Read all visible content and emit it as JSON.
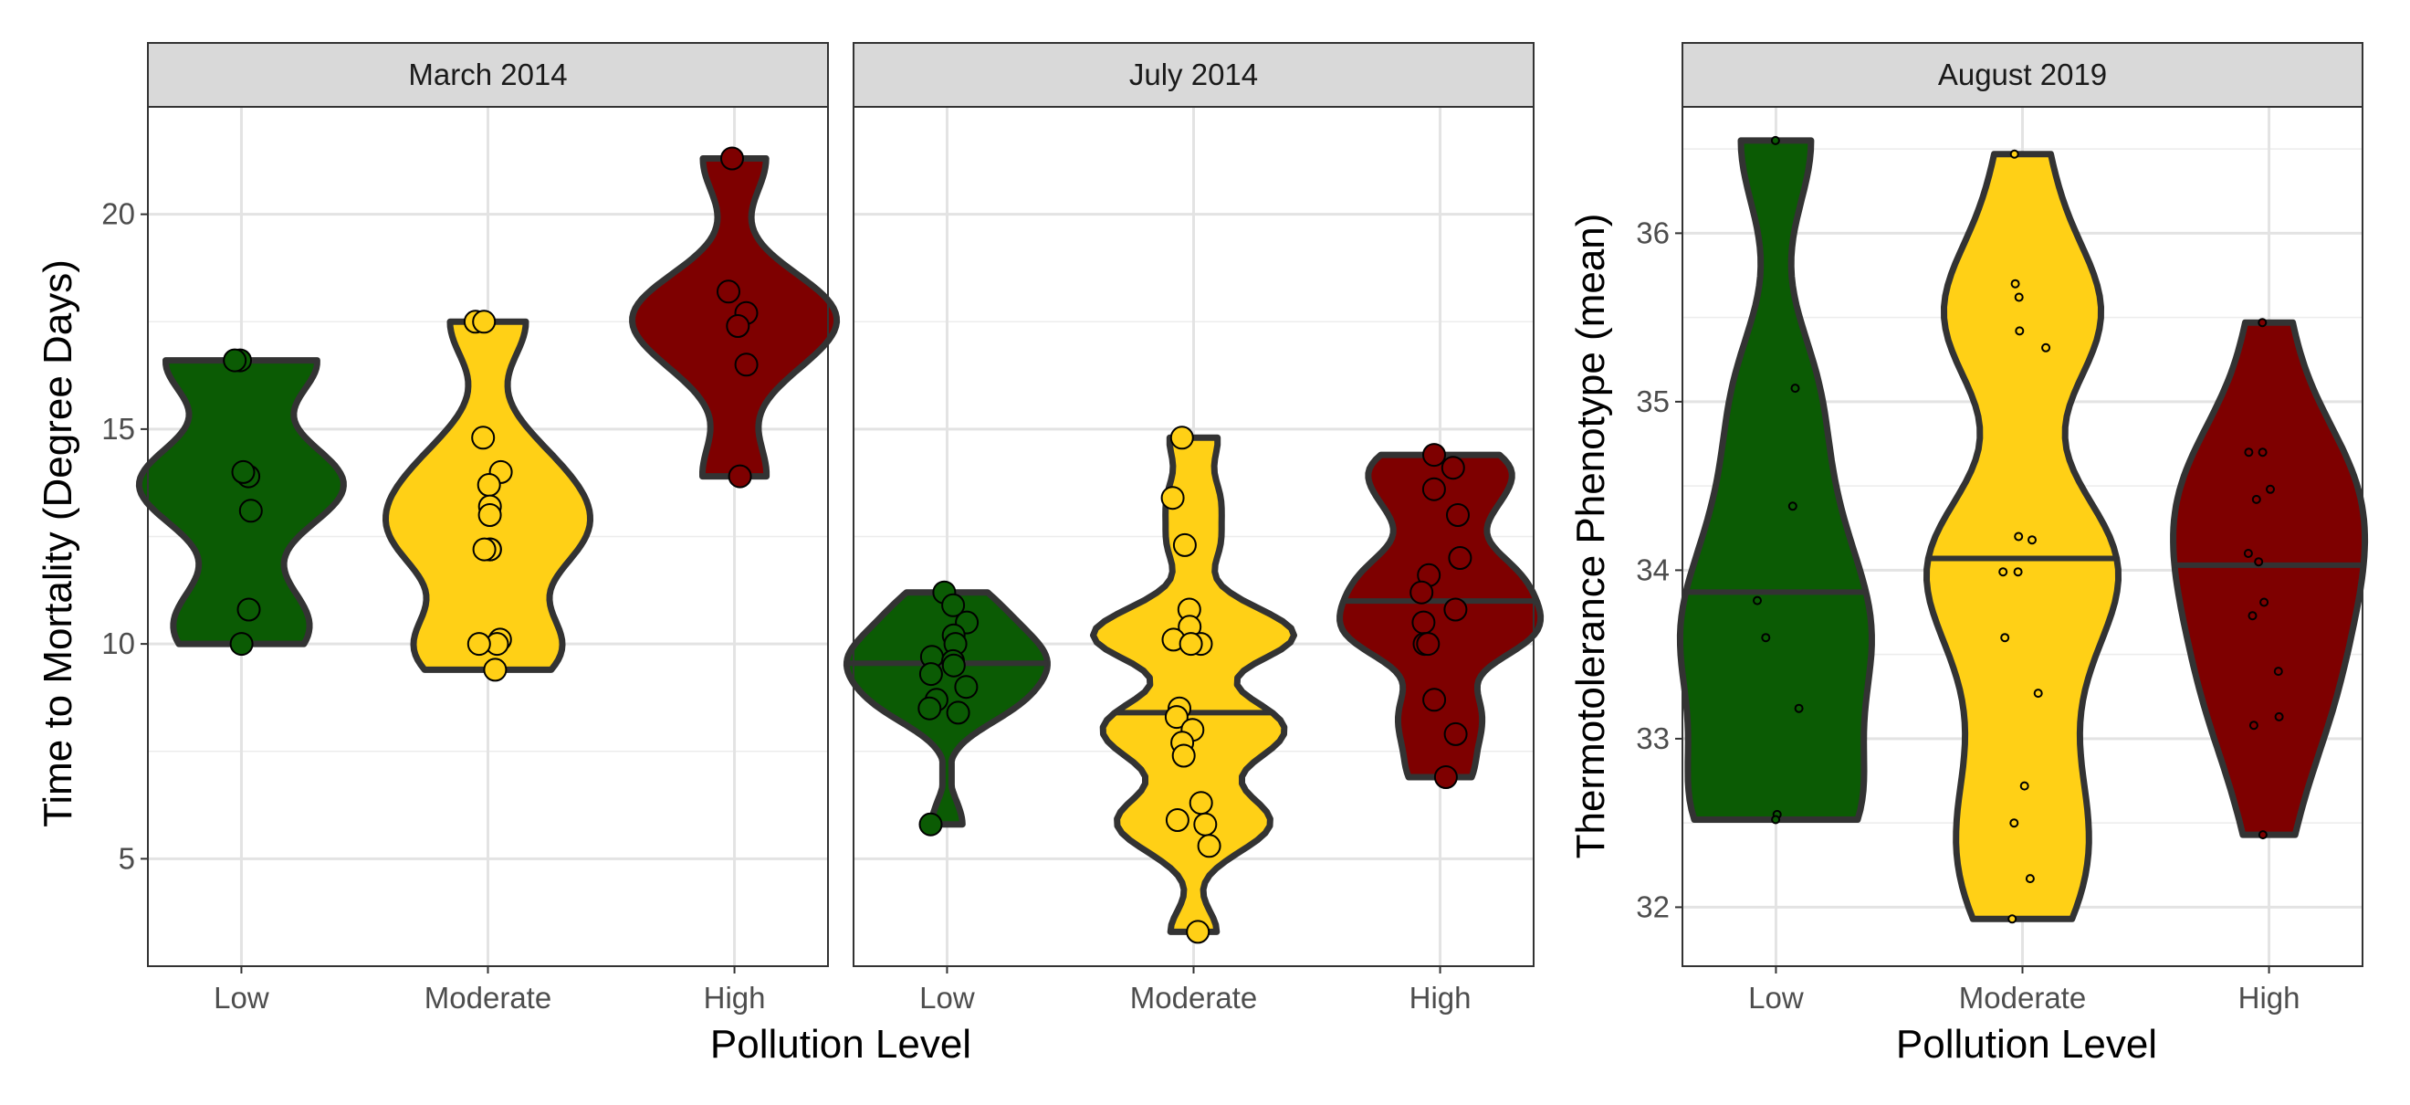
{
  "figure": {
    "left_axis_title": "Time to Mortality (Degree Days)",
    "left_x_title": "Pollution Level",
    "right_axis_title": "Thermotolerance Phenotype (mean)",
    "right_x_title": "Pollution Level"
  },
  "chart_data": [
    {
      "type": "violin",
      "title": "March 2014",
      "xlabel": "Pollution Level",
      "ylabel": "Time to Mortality (Degree Days)",
      "categories": [
        "Low",
        "Moderate",
        "High"
      ],
      "colors": [
        "#0b5b04",
        "#ffd016",
        "#7e0000"
      ],
      "ylim": [
        2.5,
        22.5
      ],
      "yticks": [
        5,
        10,
        15,
        20
      ],
      "grid": true,
      "series": [
        {
          "category": "Low",
          "points": [
            13.9,
            14.0,
            16.6,
            16.6,
            13.1,
            10.8,
            10.0
          ]
        },
        {
          "category": "Moderate",
          "points": [
            17.5,
            17.5,
            14.8,
            14.0,
            13.7,
            13.2,
            13.0,
            12.2,
            12.2,
            12.2,
            10.1,
            10.0,
            10.0,
            9.4
          ]
        },
        {
          "category": "High",
          "points": [
            21.3,
            18.2,
            17.7,
            17.4,
            16.5,
            13.9
          ]
        }
      ]
    },
    {
      "type": "violin",
      "title": "July 2014",
      "xlabel": "Pollution Level",
      "ylabel": "",
      "categories": [
        "Low",
        "Moderate",
        "High"
      ],
      "colors": [
        "#0b5b04",
        "#ffd016",
        "#7e0000"
      ],
      "ylim": [
        2.5,
        22.5
      ],
      "yticks": [
        5,
        10,
        15,
        20
      ],
      "grid": true,
      "series": [
        {
          "category": "Low",
          "points": [
            11.2,
            10.9,
            10.5,
            10.2,
            10.0,
            9.7,
            9.6,
            9.5,
            9.3,
            9.0,
            8.7,
            8.5,
            8.4,
            5.8
          ]
        },
        {
          "category": "Moderate",
          "points": [
            14.8,
            13.4,
            12.3,
            10.8,
            10.4,
            10.1,
            10.0,
            10.0,
            8.5,
            8.3,
            8.0,
            7.7,
            7.4,
            6.3,
            5.9,
            5.8,
            5.3,
            3.3
          ]
        },
        {
          "category": "High",
          "points": [
            14.4,
            14.1,
            13.6,
            13.0,
            12.0,
            11.6,
            11.2,
            10.8,
            10.5,
            10.0,
            10.0,
            8.7,
            7.9,
            6.9
          ]
        }
      ]
    },
    {
      "type": "violin",
      "title": "August 2019",
      "xlabel": "Pollution Level",
      "ylabel": "Thermotolerance Phenotype (mean)",
      "categories": [
        "Low",
        "Moderate",
        "High"
      ],
      "colors": [
        "#0b5b04",
        "#ffd016",
        "#7e0000"
      ],
      "ylim": [
        31.65,
        36.75
      ],
      "yticks": [
        32,
        33,
        34,
        35,
        36
      ],
      "grid": true,
      "series": [
        {
          "category": "Low",
          "median": 33.87,
          "points": [
            36.55,
            35.08,
            34.38,
            33.82,
            33.6,
            33.18,
            32.55,
            32.52
          ]
        },
        {
          "category": "Moderate",
          "median": 34.07,
          "points": [
            36.47,
            35.7,
            35.62,
            35.42,
            35.32,
            34.2,
            34.18,
            33.99,
            33.99,
            33.6,
            33.27,
            32.72,
            32.5,
            32.17,
            31.93
          ]
        },
        {
          "category": "High",
          "median": 34.03,
          "points": [
            35.47,
            34.7,
            34.7,
            34.48,
            34.42,
            34.1,
            34.05,
            33.81,
            33.73,
            33.4,
            33.13,
            33.08,
            32.43
          ]
        }
      ]
    }
  ]
}
